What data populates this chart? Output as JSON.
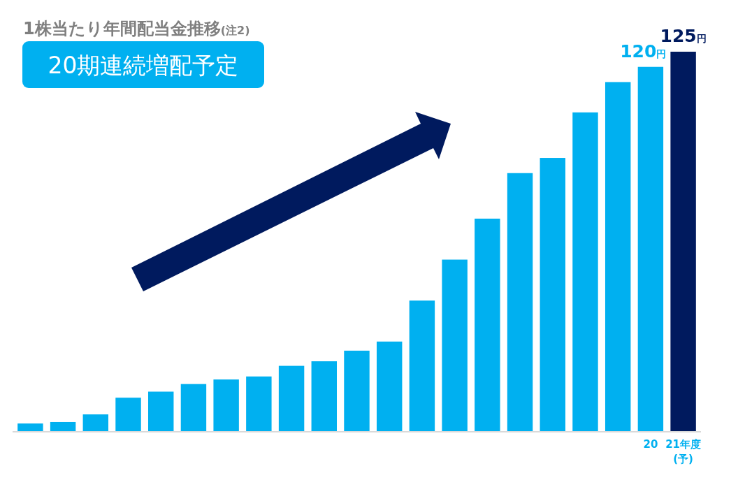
{
  "chart_data": {
    "type": "bar",
    "title": "1株当たり年間配当金推移(注2)",
    "subtitle": "20期連続増配予定",
    "categories": [
      null,
      null,
      null,
      null,
      null,
      null,
      null,
      null,
      null,
      null,
      null,
      null,
      null,
      null,
      null,
      null,
      null,
      null,
      null,
      "20",
      "21年度(予)"
    ],
    "values": [
      2.5,
      3,
      5.5,
      11,
      13,
      15.5,
      17,
      18,
      21.5,
      23,
      26.5,
      29.5,
      43,
      56.5,
      70,
      85,
      90,
      105,
      115,
      120,
      125
    ],
    "colors": [
      "#00b0f0",
      "#00b0f0",
      "#00b0f0",
      "#00b0f0",
      "#00b0f0",
      "#00b0f0",
      "#00b0f0",
      "#00b0f0",
      "#00b0f0",
      "#00b0f0",
      "#00b0f0",
      "#00b0f0",
      "#00b0f0",
      "#00b0f0",
      "#00b0f0",
      "#00b0f0",
      "#00b0f0",
      "#00b0f0",
      "#00b0f0",
      "#00b0f0",
      "#001a5e"
    ],
    "value_labels": [
      null,
      null,
      null,
      null,
      null,
      null,
      null,
      null,
      null,
      null,
      null,
      null,
      null,
      null,
      null,
      null,
      null,
      null,
      null,
      "120円",
      "125円"
    ],
    "tick_labels": "x"
  }
}
